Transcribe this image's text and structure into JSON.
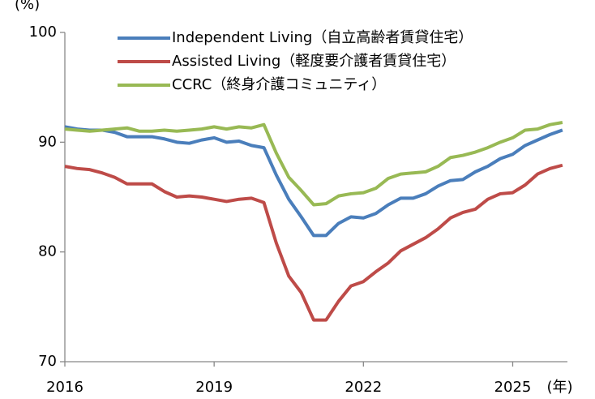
{
  "chart_data": {
    "type": "line",
    "y_unit_label": "(%)",
    "x_unit_label": "(年)",
    "x": [
      2016,
      2016.25,
      2016.5,
      2016.75,
      2017,
      2017.25,
      2017.5,
      2017.75,
      2018,
      2018.25,
      2018.5,
      2018.75,
      2019,
      2019.25,
      2019.5,
      2019.75,
      2020,
      2020.25,
      2020.5,
      2020.75,
      2021,
      2021.25,
      2021.5,
      2021.75,
      2022,
      2022.25,
      2022.5,
      2022.75,
      2023,
      2023.25,
      2023.5,
      2023.75,
      2024,
      2024.25,
      2024.5,
      2024.75,
      2025,
      2025.25,
      2025.5,
      2025.75,
      2026
    ],
    "series": [
      {
        "name": "Independent Living（自立高齢者賃貸住宅）",
        "color": "#4a7ebb",
        "values": [
          91.4,
          91.2,
          91.1,
          91.1,
          90.9,
          90.5,
          90.5,
          90.5,
          90.3,
          90.0,
          89.9,
          90.2,
          90.4,
          90.0,
          90.1,
          89.7,
          89.5,
          87.0,
          84.8,
          83.2,
          81.5,
          81.5,
          82.6,
          83.2,
          83.1,
          83.5,
          84.3,
          84.9,
          84.9,
          85.3,
          86.0,
          86.5,
          86.6,
          87.3,
          87.8,
          88.5,
          88.9,
          89.7,
          90.2,
          90.7,
          91.1
        ]
      },
      {
        "name": "Assisted Living（軽度要介護者賃貸住宅）",
        "color": "#be4b48",
        "values": [
          87.8,
          87.6,
          87.5,
          87.2,
          86.8,
          86.2,
          86.2,
          86.2,
          85.5,
          85.0,
          85.1,
          85.0,
          84.8,
          84.6,
          84.8,
          84.9,
          84.5,
          80.8,
          77.8,
          76.3,
          73.8,
          73.8,
          75.5,
          76.9,
          77.3,
          78.2,
          79.0,
          80.1,
          80.7,
          81.3,
          82.1,
          83.1,
          83.6,
          83.9,
          84.8,
          85.3,
          85.4,
          86.1,
          87.1,
          87.6,
          87.9
        ]
      },
      {
        "name": "CCRC（終身介護コミュニティ）",
        "color": "#98b954",
        "values": [
          91.2,
          91.1,
          91.0,
          91.1,
          91.2,
          91.3,
          91.0,
          91.0,
          91.1,
          91.0,
          91.1,
          91.2,
          91.4,
          91.2,
          91.4,
          91.3,
          91.6,
          89.0,
          86.8,
          85.6,
          84.3,
          84.4,
          85.1,
          85.3,
          85.4,
          85.8,
          86.7,
          87.1,
          87.2,
          87.3,
          87.8,
          88.6,
          88.8,
          89.1,
          89.5,
          90.0,
          90.4,
          91.1,
          91.2,
          91.6,
          91.8
        ]
      }
    ],
    "xlim": [
      2016,
      2026.1
    ],
    "xticks": [
      2016,
      2019,
      2022,
      2025
    ],
    "ylim": [
      70,
      100
    ],
    "yticks": [
      70,
      80,
      90,
      100
    ],
    "grid": false,
    "legend": "top"
  }
}
